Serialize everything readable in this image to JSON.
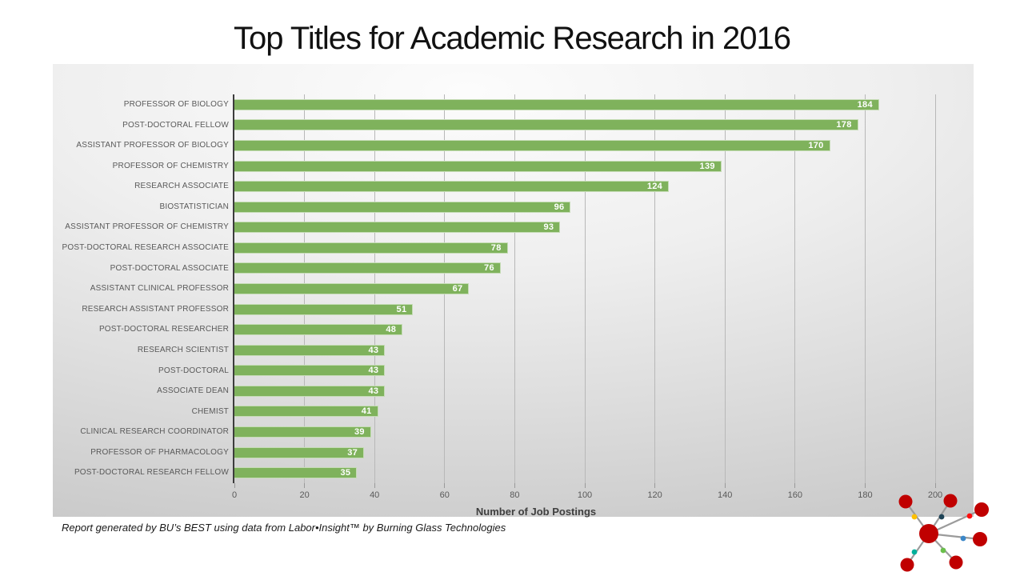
{
  "slide": {
    "title": "Top Titles for Academic Research in 2016",
    "footer": "Report generated by BU’s BEST using data from Labor•Insight™ by Burning Glass Technologies"
  },
  "chart_data": {
    "type": "bar",
    "orientation": "horizontal",
    "title": "Top Titles for Academic Research in 2016",
    "xlabel": "Number of Job Postings",
    "ylabel": "",
    "categories": [
      "PROFESSOR OF BIOLOGY",
      "POST-DOCTORAL FELLOW",
      "ASSISTANT PROFESSOR OF BIOLOGY",
      "PROFESSOR OF CHEMISTRY",
      "RESEARCH ASSOCIATE",
      "BIOSTATISTICIAN",
      "ASSISTANT PROFESSOR OF CHEMISTRY",
      "POST-DOCTORAL RESEARCH ASSOCIATE",
      "POST-DOCTORAL ASSOCIATE",
      "ASSISTANT CLINICAL PROFESSOR",
      "RESEARCH ASSISTANT PROFESSOR",
      "POST-DOCTORAL RESEARCHER",
      "RESEARCH SCIENTIST",
      "POST-DOCTORAL",
      "ASSOCIATE DEAN",
      "CHEMIST",
      "CLINICAL RESEARCH COORDINATOR",
      "PROFESSOR OF PHARMACOLOGY",
      "POST-DOCTORAL RESEARCH FELLOW"
    ],
    "values": [
      184,
      178,
      170,
      139,
      124,
      96,
      93,
      78,
      76,
      67,
      51,
      48,
      43,
      43,
      43,
      41,
      39,
      37,
      35
    ],
    "xlim": [
      0,
      200
    ],
    "xticks": [
      0,
      20,
      40,
      60,
      80,
      100,
      120,
      140,
      160,
      180,
      200
    ],
    "grid": true,
    "legend": "none",
    "bar_color": "#7fb25c",
    "value_label_color": "#ffffff",
    "axis_text_color": "#595959",
    "gridline_color": "#b8b8b8"
  },
  "logo": {
    "name": "network-logo",
    "hub_color": "#c00000",
    "ring_color": "#a6a6a6",
    "line_color": "#9b9b9b",
    "node_color": "#c00000",
    "node_stroke": "#dcdcdc",
    "dot_colors": [
      "#ffc000",
      "#1f4457",
      "#ff0f0f",
      "#3b87c8",
      "#6abf4b",
      "#00b09b"
    ]
  }
}
